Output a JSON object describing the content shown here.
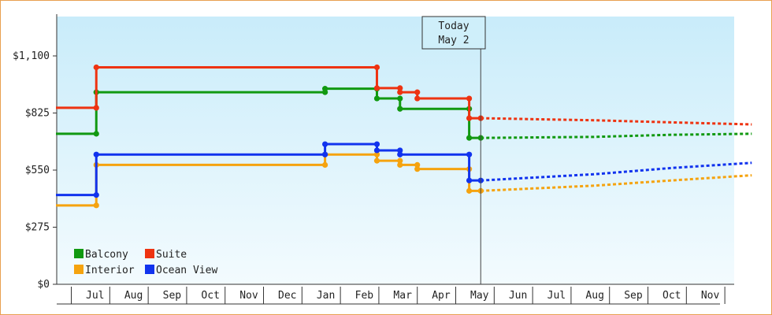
{
  "chart_data": {
    "type": "line",
    "title": "",
    "xlabel": "",
    "ylabel": "",
    "ylim": [
      0,
      1100
    ],
    "grid": false,
    "legend_position": "bottom-left",
    "y_ticks": [
      {
        "value": 0,
        "label": "$0"
      },
      {
        "value": 275,
        "label": "$275"
      },
      {
        "value": 550,
        "label": "$550"
      },
      {
        "value": 825,
        "label": "$825"
      },
      {
        "value": 1100,
        "label": "$1,100"
      }
    ],
    "months": [
      {
        "label": "Jul",
        "m": 1
      },
      {
        "label": "Aug",
        "m": 2
      },
      {
        "label": "Sep",
        "m": 3
      },
      {
        "label": "Oct",
        "m": 4
      },
      {
        "label": "Nov",
        "m": 5
      },
      {
        "label": "Dec",
        "m": 6
      },
      {
        "label": "Jan",
        "m": 7
      },
      {
        "label": "Feb",
        "m": 8
      },
      {
        "label": "Mar",
        "m": 9
      },
      {
        "label": "Apr",
        "m": 10
      },
      {
        "label": "May",
        "m": 11
      },
      {
        "label": "Jun",
        "m": 12
      },
      {
        "label": "Jul",
        "m": 13
      },
      {
        "label": "Aug",
        "m": 14
      },
      {
        "label": "Sep",
        "m": 15
      },
      {
        "label": "Oct",
        "m": 16
      },
      {
        "label": "Nov",
        "m": 17
      }
    ],
    "today": {
      "line1": "Today",
      "line2": "May 2",
      "m": 11.05
    },
    "series": [
      {
        "name": "Balcony",
        "color": "#119911",
        "points": [
          [
            0.0,
            725
          ],
          [
            1.05,
            725
          ],
          [
            1.05,
            925
          ],
          [
            7.0,
            925
          ],
          [
            7.0,
            942
          ],
          [
            8.35,
            942
          ],
          [
            8.35,
            895
          ],
          [
            8.95,
            895
          ],
          [
            8.95,
            845
          ],
          [
            10.75,
            845
          ],
          [
            10.75,
            705
          ],
          [
            11.05,
            705
          ]
        ],
        "forecast": [
          [
            11.05,
            705
          ],
          [
            14.0,
            710
          ],
          [
            16.0,
            720
          ],
          [
            18.1,
            725
          ]
        ]
      },
      {
        "name": "Suite",
        "color": "#ee3311",
        "points": [
          [
            0.0,
            850
          ],
          [
            1.05,
            850
          ],
          [
            1.05,
            1045
          ],
          [
            8.35,
            1045
          ],
          [
            8.35,
            945
          ],
          [
            8.95,
            945
          ],
          [
            8.95,
            925
          ],
          [
            9.4,
            925
          ],
          [
            9.4,
            895
          ],
          [
            10.75,
            895
          ],
          [
            10.75,
            800
          ],
          [
            11.05,
            800
          ]
        ],
        "forecast": [
          [
            11.05,
            800
          ],
          [
            14.0,
            790
          ],
          [
            16.0,
            780
          ],
          [
            18.1,
            770
          ]
        ]
      },
      {
        "name": "Interior",
        "color": "#f5a30f",
        "points": [
          [
            0.0,
            380
          ],
          [
            1.05,
            380
          ],
          [
            1.05,
            575
          ],
          [
            7.0,
            575
          ],
          [
            7.0,
            625
          ],
          [
            8.35,
            625
          ],
          [
            8.35,
            595
          ],
          [
            8.95,
            595
          ],
          [
            8.95,
            575
          ],
          [
            9.4,
            575
          ],
          [
            9.4,
            555
          ],
          [
            10.75,
            555
          ],
          [
            10.75,
            450
          ],
          [
            11.05,
            450
          ]
        ],
        "forecast": [
          [
            11.05,
            450
          ],
          [
            14.0,
            475
          ],
          [
            16.0,
            500
          ],
          [
            18.1,
            525
          ]
        ]
      },
      {
        "name": "Ocean View",
        "color": "#1133ee",
        "points": [
          [
            0.0,
            430
          ],
          [
            1.05,
            430
          ],
          [
            1.05,
            625
          ],
          [
            7.0,
            625
          ],
          [
            7.0,
            675
          ],
          [
            8.35,
            675
          ],
          [
            8.35,
            645
          ],
          [
            8.95,
            645
          ],
          [
            8.95,
            625
          ],
          [
            10.75,
            625
          ],
          [
            10.75,
            500
          ],
          [
            11.05,
            500
          ]
        ],
        "forecast": [
          [
            11.05,
            500
          ],
          [
            14.0,
            530
          ],
          [
            16.0,
            560
          ],
          [
            18.1,
            585
          ]
        ]
      }
    ]
  }
}
